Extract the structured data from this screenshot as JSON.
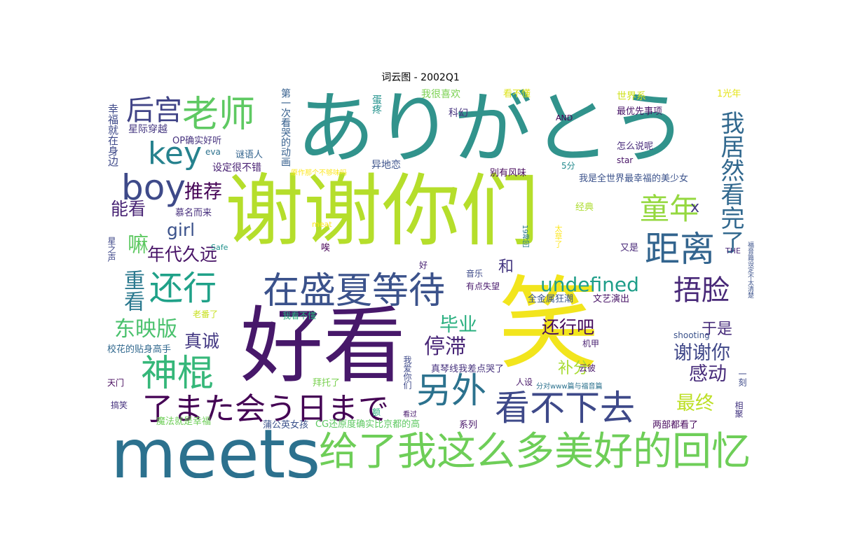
{
  "title": "词云图 - 2002Q1",
  "chart_data": {
    "type": "wordcloud",
    "title": "词云图 - 2002Q1",
    "colormap": "viridis",
    "words": [
      {
        "text": "谢谢你们",
        "weight": 100,
        "color": "#b5de2b"
      },
      {
        "text": "ありがとう",
        "weight": 92,
        "color": "#31938c"
      },
      {
        "text": "好看",
        "weight": 88,
        "color": "#47186a"
      },
      {
        "text": "笑",
        "weight": 86,
        "color": "#f2e51d"
      },
      {
        "text": "meets",
        "weight": 70,
        "color": "#2c718e"
      },
      {
        "text": "给了我这么多美好的回忆",
        "weight": 46,
        "color": "#6ece58"
      },
      {
        "text": "在盛夏等待",
        "weight": 40,
        "color": "#3b528b"
      },
      {
        "text": "老师",
        "weight": 42,
        "color": "#5ec962"
      },
      {
        "text": "神棍",
        "weight": 42,
        "color": "#35b779"
      },
      {
        "text": "还行",
        "weight": 38,
        "color": "#1fa188"
      },
      {
        "text": "另外",
        "weight": 40,
        "color": "#2c728e"
      },
      {
        "text": "看不下去",
        "weight": 40,
        "color": "#3e4989"
      },
      {
        "text": "了また会う日まで",
        "weight": 38,
        "color": "#440154"
      },
      {
        "text": "距离",
        "weight": 40,
        "color": "#32648e"
      },
      {
        "text": "boy",
        "weight": 38,
        "color": "#3e4a89"
      },
      {
        "text": "key",
        "weight": 36,
        "color": "#26828e"
      },
      {
        "text": "童年",
        "weight": 34,
        "color": "#95d840"
      },
      {
        "text": "后宫",
        "weight": 32,
        "color": "#414487"
      },
      {
        "text": "捂脸",
        "weight": 32,
        "color": "#482878"
      },
      {
        "text": "我居然看完了",
        "weight": 28,
        "color": "#31688e"
      },
      {
        "text": "undefined",
        "weight": 26,
        "color": "#1f9e89"
      },
      {
        "text": "停滞",
        "weight": 24,
        "color": "#482677"
      },
      {
        "text": "东映版",
        "weight": 24,
        "color": "#4ac16d"
      },
      {
        "text": "重看",
        "weight": 24,
        "color": "#2a788e"
      },
      {
        "text": "嘛",
        "weight": 24,
        "color": "#5ec962"
      },
      {
        "text": "推荐",
        "weight": 22,
        "color": "#440154"
      },
      {
        "text": "最终",
        "weight": 22,
        "color": "#bddf26"
      },
      {
        "text": "毕业",
        "weight": 22,
        "color": "#29af7f"
      },
      {
        "text": "谢谢你",
        "weight": 22,
        "color": "#3f4788"
      },
      {
        "text": "感动",
        "weight": 22,
        "color": "#472c7a"
      },
      {
        "text": "girl",
        "weight": 20,
        "color": "#3b528b"
      },
      {
        "text": "年代久远",
        "weight": 20,
        "color": "#481467"
      },
      {
        "text": "真诚",
        "weight": 20,
        "color": "#443983"
      },
      {
        "text": "还行吧",
        "weight": 20,
        "color": "#460b5e"
      },
      {
        "text": "能看",
        "weight": 20,
        "color": "#482374"
      },
      {
        "text": "于是",
        "weight": 18,
        "color": "#472d7b"
      },
      {
        "text": "和",
        "weight": 18,
        "color": "#453781"
      },
      {
        "text": "x",
        "weight": 18,
        "color": "#453882"
      },
      {
        "text": "补分",
        "weight": 18,
        "color": "#a8db34"
      },
      {
        "text": "幸福就在身边",
        "weight": 14,
        "color": "#3e4989"
      },
      {
        "text": "星际穿越",
        "weight": 13,
        "color": "#453781"
      },
      {
        "text": "OP确实好听",
        "weight": 13,
        "color": "#46327e"
      },
      {
        "text": "eva",
        "weight": 12,
        "color": "#2c728e"
      },
      {
        "text": "谜语人",
        "weight": 13,
        "color": "#33638d"
      },
      {
        "text": "设定很不错",
        "weight": 13,
        "color": "#482173"
      },
      {
        "text": "第一次看哭的动画",
        "weight": 14,
        "color": "#355f8d"
      },
      {
        "text": "原作那个不够味吗",
        "weight": 10,
        "color": "#fde725"
      },
      {
        "text": "蛋疼",
        "weight": 13,
        "color": "#21918c"
      },
      {
        "text": "我很喜欢",
        "weight": 14,
        "color": "#7ad151"
      },
      {
        "text": "看不懂",
        "weight": 13,
        "color": "#dde318"
      },
      {
        "text": "科幻",
        "weight": 14,
        "color": "#46337f"
      },
      {
        "text": "异地恋",
        "weight": 14,
        "color": "#3b528b"
      },
      {
        "text": "别有风味",
        "weight": 13,
        "color": "#46075a"
      },
      {
        "text": "世界系",
        "weight": 14,
        "color": "#d0e11c"
      },
      {
        "text": "1光年",
        "weight": 13,
        "color": "#e5e419"
      },
      {
        "text": "最优先事项",
        "weight": 13,
        "color": "#481668"
      },
      {
        "text": "AND",
        "weight": 11,
        "color": "#440154"
      },
      {
        "text": "怎么说呢",
        "weight": 13,
        "color": "#472a7a"
      },
      {
        "text": "star",
        "weight": 12,
        "color": "#481467"
      },
      {
        "text": "5分",
        "weight": 12,
        "color": "#238a8d"
      },
      {
        "text": "我是全世界最幸福的美少女",
        "weight": 13,
        "color": "#3b528b"
      },
      {
        "text": "慕名而来",
        "weight": 13,
        "color": "#472f7d"
      },
      {
        "text": "经典",
        "weight": 13,
        "color": "#addc30"
      },
      {
        "text": "meat",
        "weight": 11,
        "color": "#fbe723"
      },
      {
        "text": "Safe",
        "weight": 11,
        "color": "#20928c"
      },
      {
        "text": "星之声",
        "weight": 12,
        "color": "#3f4889"
      },
      {
        "text": "唉",
        "weight": 13,
        "color": "#440154"
      },
      {
        "text": "好",
        "weight": 12,
        "color": "#482173"
      },
      {
        "text": "19神回",
        "weight": 10,
        "color": "#2a788e"
      },
      {
        "text": "太草了",
        "weight": 11,
        "color": "#fde725"
      },
      {
        "text": "又是",
        "weight": 13,
        "color": "#482878"
      },
      {
        "text": "THE",
        "weight": 11,
        "color": "#482878"
      },
      {
        "text": "福音篇设定不太清楚",
        "weight": 9,
        "color": "#3b528b"
      },
      {
        "text": "音乐",
        "weight": 12,
        "color": "#3e4a89"
      },
      {
        "text": "有点失望",
        "weight": 12,
        "color": "#481a6c"
      },
      {
        "text": "全金属狂潮",
        "weight": 13,
        "color": "#39558c"
      },
      {
        "text": "文艺演出",
        "weight": 13,
        "color": "#481467"
      },
      {
        "text": "老番了",
        "weight": 12,
        "color": "#c8e020"
      },
      {
        "text": "我看不懂",
        "weight": 12,
        "color": "#29af7f"
      },
      {
        "text": "shooting",
        "weight": 12,
        "color": "#3b528b"
      },
      {
        "text": "校花的贴身高手",
        "weight": 13,
        "color": "#31688e"
      },
      {
        "text": "我爱你们",
        "weight": 12,
        "color": "#3e4989"
      },
      {
        "text": "真琴线我差点哭了",
        "weight": 13,
        "color": "#46327e"
      },
      {
        "text": "机甲",
        "weight": 12,
        "color": "#481f70"
      },
      {
        "text": "云彼",
        "weight": 12,
        "color": "#48186a"
      },
      {
        "text": "一刻",
        "weight": 12,
        "color": "#3e4a89"
      },
      {
        "text": "天门",
        "weight": 12,
        "color": "#460a5d"
      },
      {
        "text": "拜托了",
        "weight": 13,
        "color": "#7ad151"
      },
      {
        "text": "人设",
        "weight": 12,
        "color": "#481769"
      },
      {
        "text": "分对www篇与福音篇",
        "weight": 10,
        "color": "#2c728e"
      },
      {
        "text": "搞笑",
        "weight": 12,
        "color": "#46327e"
      },
      {
        "text": "额",
        "weight": 12,
        "color": "#29af7f"
      },
      {
        "text": "看过",
        "weight": 10,
        "color": "#481b6d"
      },
      {
        "text": "相聚",
        "weight": 12,
        "color": "#453781"
      },
      {
        "text": "魔法就是幸福",
        "weight": 13,
        "color": "#6ece58"
      },
      {
        "text": "蒲公英女孩",
        "weight": 13,
        "color": "#3b528b"
      },
      {
        "text": "CG还原度确实比京都的高",
        "weight": 13,
        "color": "#5ec962"
      },
      {
        "text": "系列",
        "weight": 13,
        "color": "#481769"
      },
      {
        "text": "两部都看了",
        "weight": 13,
        "color": "#46085c"
      }
    ]
  }
}
